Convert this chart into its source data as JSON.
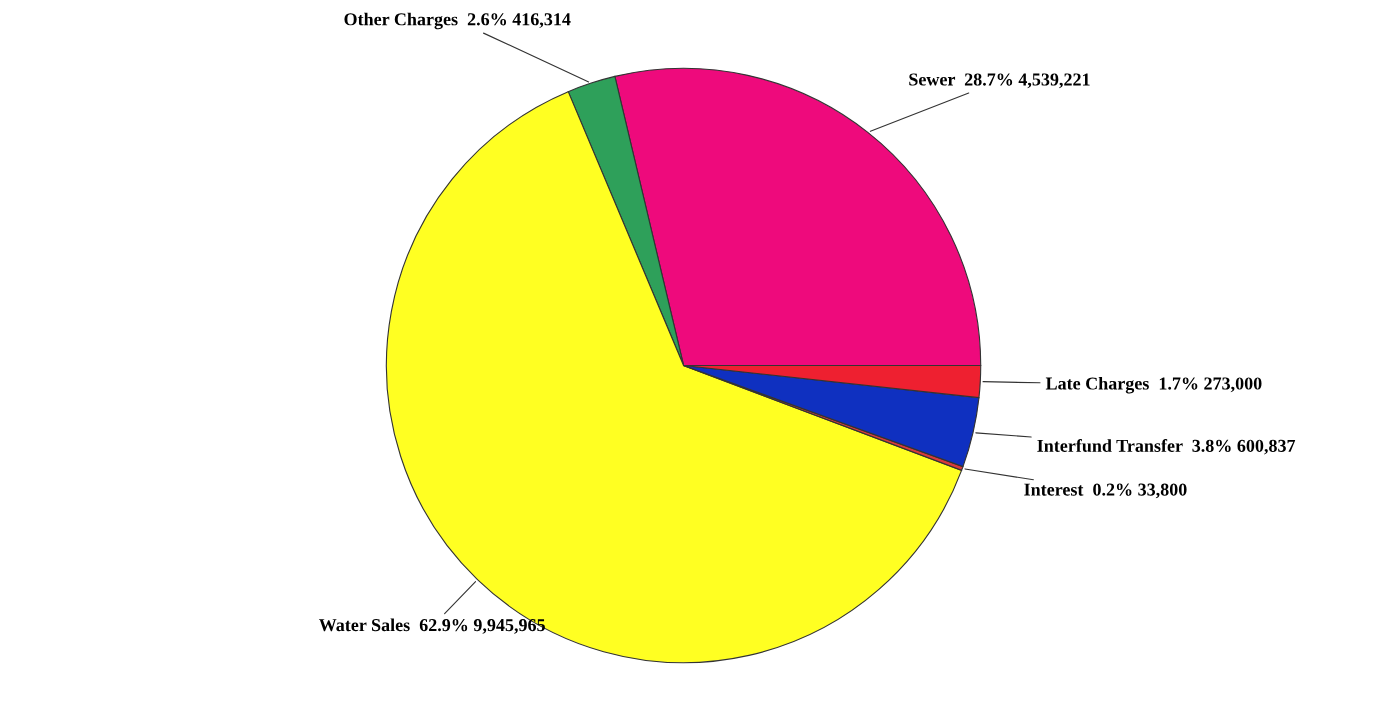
{
  "chart_data": {
    "type": "pie",
    "categories": [
      "Sewer",
      "Other Charges",
      "Water Sales",
      "Interest",
      "Interfund Transfer",
      "Late Charges"
    ],
    "values": [
      4539221,
      416314,
      9945965,
      33800,
      600837,
      273000
    ],
    "value_labels": [
      "28.7% 4,539,221",
      "2.6% 416,314",
      "62.9% 9,945,965",
      "0.2% 33,800",
      "3.8% 600,837",
      "1.7% 273,000"
    ],
    "colors": [
      "#ee0a7c",
      "#2ea05a",
      "#ffff22",
      "#d83a3a",
      "#0f30c0",
      "#ee2030"
    ],
    "legend": false
  }
}
